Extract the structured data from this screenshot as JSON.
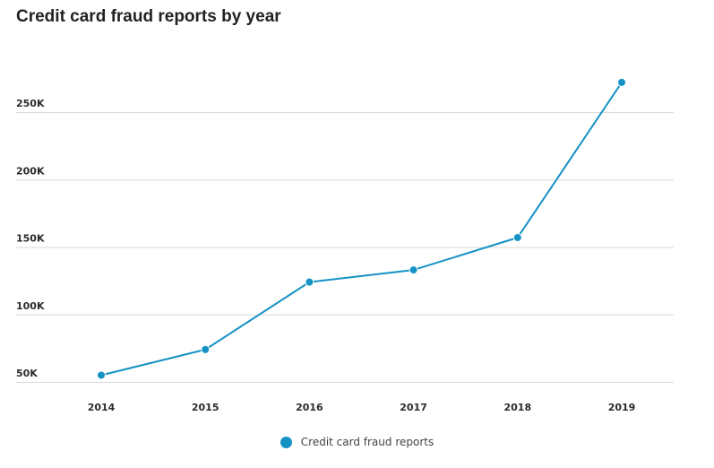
{
  "chart_data": {
    "type": "line",
    "title": "Credit card fraud reports by year",
    "xlabel": "",
    "ylabel": "",
    "x": [
      "2014",
      "2015",
      "2016",
      "2017",
      "2018",
      "2019"
    ],
    "series": [
      {
        "name": "Credit card fraud reports",
        "values": [
          55000,
          74000,
          124000,
          133000,
          157000,
          272000
        ]
      }
    ],
    "yticks": [
      50000,
      100000,
      150000,
      200000,
      250000
    ],
    "ytick_labels": [
      "50K",
      "100K",
      "150K",
      "200K",
      "250K"
    ],
    "ylim": [
      50000,
      250000
    ],
    "grid": true,
    "legend": "bottom-center",
    "colors": {
      "series": "#1592c4",
      "grid": "#d9d9d9"
    }
  }
}
